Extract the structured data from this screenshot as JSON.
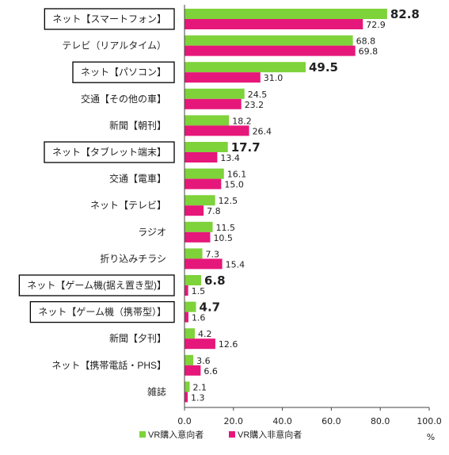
{
  "chart_data": {
    "type": "bar",
    "orientation": "horizontal",
    "categories": [
      "ネット【スマートフォン】",
      "テレビ（リアルタイム）",
      "ネット【パソコン】",
      "交通【その他の車】",
      "新聞【朝刊】",
      "ネット【タブレット端末】",
      "交通【電車】",
      "ネット【テレビ】",
      "ラジオ",
      "折り込みチラシ",
      "ネット【ゲーム機(据え置き型)】",
      "ネット【ゲーム機（携帯型）】",
      "新聞【夕刊】",
      "ネット【携帯電話・PHS】",
      "雑誌"
    ],
    "boxed_categories": [
      0,
      2,
      5,
      10,
      11
    ],
    "series": [
      {
        "name": "VR購入意向者",
        "color": "#7ed23a",
        "values": [
          82.8,
          68.8,
          49.5,
          24.5,
          18.2,
          17.7,
          16.1,
          12.5,
          11.5,
          7.3,
          6.8,
          4.7,
          4.2,
          3.6,
          2.1
        ],
        "value_labels": [
          "82.8",
          "68.8",
          "49.5",
          "24.5",
          "18.2",
          "17.7",
          "16.1",
          "12.5",
          "11.5",
          "7.3",
          "6.8",
          "4.7",
          "4.2",
          "3.6",
          "2.1"
        ]
      },
      {
        "name": "VR購入非意向者",
        "color": "#e6177a",
        "values": [
          72.9,
          69.8,
          31.0,
          23.2,
          26.4,
          13.4,
          15.0,
          7.8,
          10.5,
          15.4,
          1.5,
          1.6,
          12.6,
          6.6,
          1.3
        ],
        "value_labels": [
          "72.9",
          "69.8",
          "31.0",
          "23.2",
          "26.4",
          "13.4",
          "15.0",
          "7.8",
          "10.5",
          "15.4",
          "1.5",
          "1.6",
          "12.6",
          "6.6",
          "1.3"
        ]
      }
    ],
    "x_ticks": [
      "0.0",
      "20.0",
      "40.0",
      "60.0",
      "80.0",
      "100.0"
    ],
    "xlim": [
      0,
      100
    ],
    "unit": "%",
    "grid": false,
    "legend_position": "bottom"
  }
}
